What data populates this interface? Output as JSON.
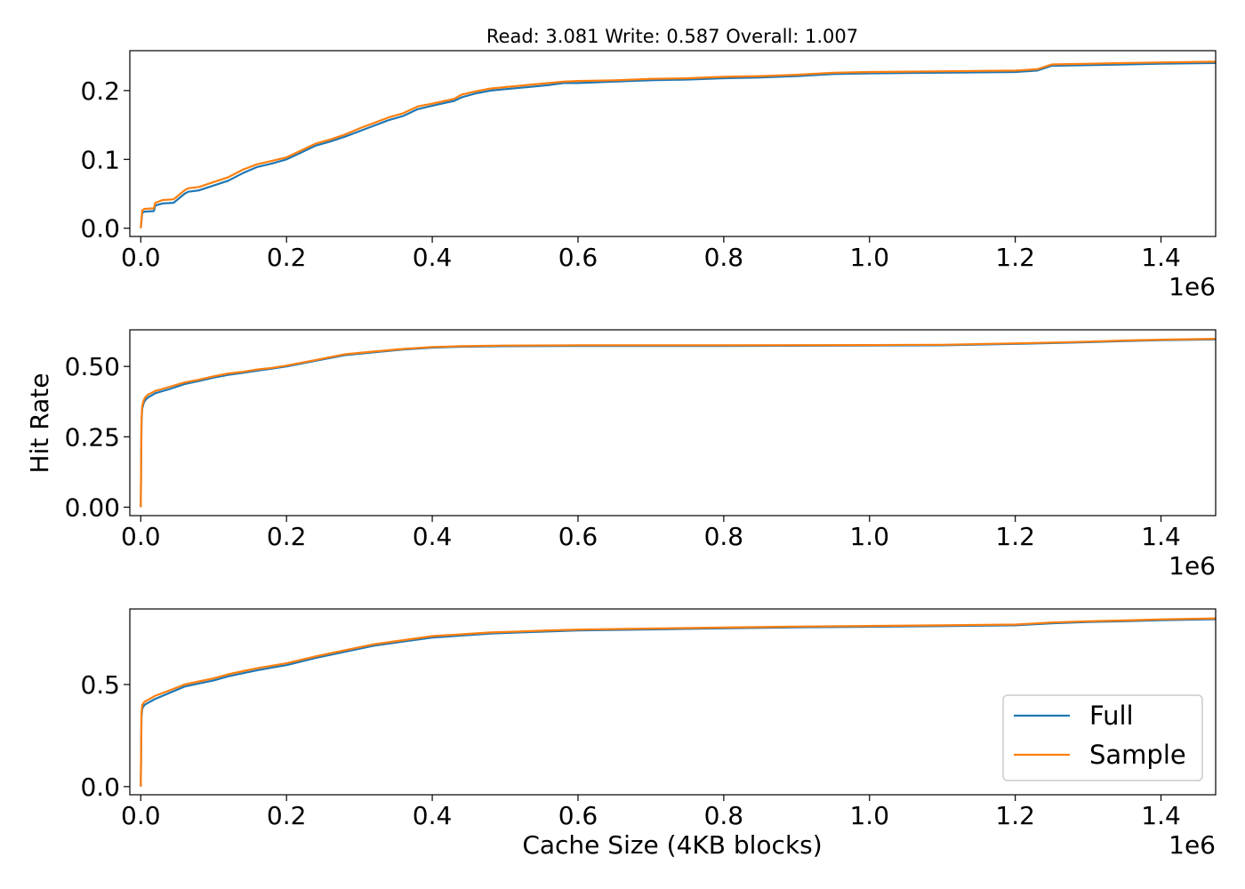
{
  "figure": {
    "title": "Read: 3.081 Write: 0.587 Overall: 1.007",
    "ylabel": "Hit Rate",
    "xlabel": "Cache Size (4KB blocks)",
    "x_offset_label": "1e6"
  },
  "colors": {
    "full": "#1f77b4",
    "sample": "#ff7f0e"
  },
  "legend": {
    "placement": "lower-right",
    "entries": [
      "Full",
      "Sample"
    ]
  },
  "chart_data": [
    {
      "type": "line",
      "name": "read",
      "xlim": [
        -15000,
        1475000
      ],
      "ylim": [
        -0.012,
        0.258
      ],
      "xticks": [
        0,
        200000,
        400000,
        600000,
        800000,
        1000000,
        1200000,
        1400000
      ],
      "xtick_labels": [
        "0.0",
        "0.2",
        "0.4",
        "0.6",
        "0.8",
        "1.0",
        "1.2",
        "1.4"
      ],
      "yticks": [
        0,
        0.1,
        0.2
      ],
      "ytick_labels": [
        "0.0",
        "0.1",
        "0.2"
      ],
      "grid": false,
      "series": [
        {
          "name": "Full",
          "x": [
            0,
            2000,
            5000,
            18000,
            20000,
            30000,
            45000,
            60000,
            65000,
            80000,
            100000,
            120000,
            140000,
            160000,
            180000,
            200000,
            220000,
            240000,
            260000,
            280000,
            300000,
            320000,
            340000,
            360000,
            380000,
            400000,
            430000,
            440000,
            460000,
            480000,
            500000,
            520000,
            540000,
            560000,
            580000,
            600000,
            650000,
            700000,
            750000,
            800000,
            850000,
            900000,
            950000,
            1000000,
            1100000,
            1200000,
            1230000,
            1250000,
            1300000,
            1350000,
            1400000,
            1475000
          ],
          "y": [
            0.0,
            0.022,
            0.024,
            0.025,
            0.033,
            0.036,
            0.037,
            0.05,
            0.053,
            0.055,
            0.062,
            0.069,
            0.08,
            0.089,
            0.094,
            0.1,
            0.11,
            0.12,
            0.126,
            0.133,
            0.141,
            0.149,
            0.157,
            0.163,
            0.173,
            0.178,
            0.185,
            0.19,
            0.196,
            0.2,
            0.202,
            0.204,
            0.206,
            0.208,
            0.211,
            0.211,
            0.213,
            0.215,
            0.216,
            0.218,
            0.219,
            0.221,
            0.224,
            0.225,
            0.226,
            0.227,
            0.229,
            0.236,
            0.237,
            0.238,
            0.239,
            0.24
          ]
        },
        {
          "name": "Sample",
          "x": [
            0,
            2000,
            5000,
            18000,
            20000,
            30000,
            45000,
            60000,
            65000,
            80000,
            100000,
            120000,
            140000,
            160000,
            180000,
            200000,
            220000,
            240000,
            260000,
            280000,
            300000,
            320000,
            340000,
            360000,
            380000,
            400000,
            430000,
            440000,
            460000,
            480000,
            500000,
            520000,
            540000,
            560000,
            580000,
            600000,
            650000,
            700000,
            750000,
            800000,
            850000,
            900000,
            950000,
            1000000,
            1100000,
            1200000,
            1230000,
            1250000,
            1300000,
            1350000,
            1400000,
            1475000
          ],
          "y": [
            0.0,
            0.026,
            0.028,
            0.029,
            0.037,
            0.041,
            0.042,
            0.055,
            0.058,
            0.06,
            0.067,
            0.074,
            0.085,
            0.093,
            0.098,
            0.103,
            0.113,
            0.123,
            0.129,
            0.136,
            0.145,
            0.153,
            0.161,
            0.167,
            0.177,
            0.181,
            0.188,
            0.194,
            0.199,
            0.203,
            0.205,
            0.207,
            0.209,
            0.211,
            0.213,
            0.214,
            0.215,
            0.217,
            0.218,
            0.22,
            0.221,
            0.223,
            0.226,
            0.227,
            0.228,
            0.229,
            0.231,
            0.238,
            0.239,
            0.24,
            0.241,
            0.242
          ]
        }
      ]
    },
    {
      "type": "line",
      "name": "write",
      "xlim": [
        -15000,
        1475000
      ],
      "ylim": [
        -0.03,
        0.63
      ],
      "xticks": [
        0,
        200000,
        400000,
        600000,
        800000,
        1000000,
        1200000,
        1400000
      ],
      "xtick_labels": [
        "0.0",
        "0.2",
        "0.4",
        "0.6",
        "0.8",
        "1.0",
        "1.2",
        "1.4"
      ],
      "yticks": [
        0,
        0.25,
        0.5
      ],
      "ytick_labels": [
        "0.00",
        "0.25",
        "0.50"
      ],
      "grid": false,
      "series": [
        {
          "name": "Full",
          "x": [
            0,
            1000,
            2000,
            4000,
            6000,
            10000,
            20000,
            40000,
            60000,
            80000,
            100000,
            120000,
            140000,
            160000,
            180000,
            200000,
            240000,
            280000,
            320000,
            360000,
            400000,
            440000,
            500000,
            600000,
            800000,
            1000000,
            1100000,
            1200000,
            1250000,
            1300000,
            1350000,
            1400000,
            1475000
          ],
          "y": [
            0.0,
            0.3,
            0.35,
            0.37,
            0.38,
            0.39,
            0.405,
            0.42,
            0.437,
            0.448,
            0.46,
            0.47,
            0.477,
            0.485,
            0.492,
            0.5,
            0.52,
            0.54,
            0.55,
            0.56,
            0.567,
            0.57,
            0.572,
            0.573,
            0.573,
            0.574,
            0.575,
            0.58,
            0.583,
            0.586,
            0.59,
            0.593,
            0.596
          ]
        },
        {
          "name": "Sample",
          "x": [
            0,
            1000,
            2000,
            4000,
            6000,
            10000,
            20000,
            40000,
            60000,
            80000,
            100000,
            120000,
            140000,
            160000,
            180000,
            200000,
            240000,
            280000,
            320000,
            360000,
            400000,
            440000,
            500000,
            600000,
            800000,
            1000000,
            1100000,
            1200000,
            1250000,
            1300000,
            1350000,
            1400000,
            1475000
          ],
          "y": [
            0.0,
            0.31,
            0.36,
            0.38,
            0.39,
            0.4,
            0.413,
            0.428,
            0.443,
            0.453,
            0.465,
            0.475,
            0.481,
            0.489,
            0.495,
            0.503,
            0.523,
            0.543,
            0.553,
            0.562,
            0.569,
            0.572,
            0.574,
            0.575,
            0.575,
            0.576,
            0.577,
            0.582,
            0.585,
            0.588,
            0.592,
            0.595,
            0.598
          ]
        }
      ]
    },
    {
      "type": "line",
      "name": "overall",
      "xlim": [
        -15000,
        1475000
      ],
      "ylim": [
        -0.04,
        0.87
      ],
      "xticks": [
        0,
        200000,
        400000,
        600000,
        800000,
        1000000,
        1200000,
        1400000
      ],
      "xtick_labels": [
        "0.0",
        "0.2",
        "0.4",
        "0.6",
        "0.8",
        "1.0",
        "1.2",
        "1.4"
      ],
      "yticks": [
        0,
        0.5
      ],
      "ytick_labels": [
        "0.0",
        "0.5"
      ],
      "grid": false,
      "series": [
        {
          "name": "Full",
          "x": [
            0,
            1000,
            2000,
            5000,
            10000,
            20000,
            40000,
            60000,
            80000,
            100000,
            120000,
            140000,
            160000,
            180000,
            200000,
            240000,
            280000,
            320000,
            360000,
            400000,
            440000,
            480000,
            520000,
            560000,
            600000,
            700000,
            800000,
            900000,
            1000000,
            1100000,
            1200000,
            1250000,
            1300000,
            1350000,
            1400000,
            1475000
          ],
          "y": [
            0.0,
            0.34,
            0.38,
            0.4,
            0.41,
            0.43,
            0.46,
            0.49,
            0.505,
            0.52,
            0.54,
            0.555,
            0.57,
            0.583,
            0.595,
            0.63,
            0.66,
            0.69,
            0.71,
            0.73,
            0.74,
            0.75,
            0.755,
            0.76,
            0.765,
            0.77,
            0.775,
            0.78,
            0.783,
            0.786,
            0.79,
            0.8,
            0.806,
            0.81,
            0.815,
            0.82
          ]
        },
        {
          "name": "Sample",
          "x": [
            0,
            1000,
            2000,
            5000,
            10000,
            20000,
            40000,
            60000,
            80000,
            100000,
            120000,
            140000,
            160000,
            180000,
            200000,
            240000,
            280000,
            320000,
            360000,
            400000,
            440000,
            480000,
            520000,
            560000,
            600000,
            700000,
            800000,
            900000,
            1000000,
            1100000,
            1200000,
            1250000,
            1300000,
            1350000,
            1400000,
            1475000
          ],
          "y": [
            0.0,
            0.36,
            0.4,
            0.415,
            0.425,
            0.445,
            0.472,
            0.5,
            0.515,
            0.53,
            0.55,
            0.565,
            0.58,
            0.592,
            0.604,
            0.638,
            0.668,
            0.697,
            0.717,
            0.737,
            0.746,
            0.755,
            0.76,
            0.765,
            0.769,
            0.774,
            0.779,
            0.784,
            0.787,
            0.79,
            0.794,
            0.804,
            0.81,
            0.814,
            0.819,
            0.824
          ]
        }
      ]
    }
  ]
}
